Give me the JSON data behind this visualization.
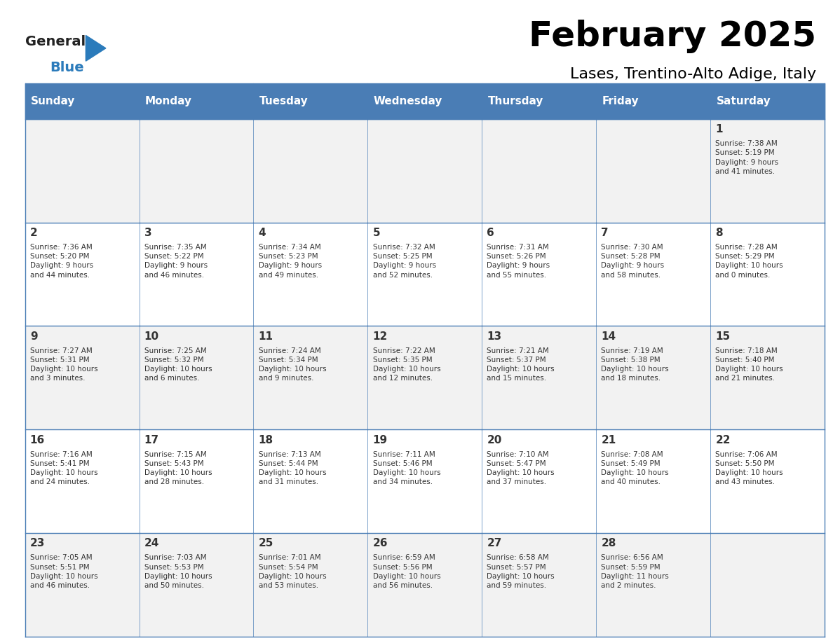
{
  "title": "February 2025",
  "subtitle": "Lases, Trentino-Alto Adige, Italy",
  "days_of_week": [
    "Sunday",
    "Monday",
    "Tuesday",
    "Wednesday",
    "Thursday",
    "Friday",
    "Saturday"
  ],
  "header_bg": "#4A7DB5",
  "header_text": "#FFFFFF",
  "cell_bg_even": "#F2F2F2",
  "cell_bg_odd": "#FFFFFF",
  "border_color": "#4A7DB5",
  "text_color": "#333333",
  "logo_general_color": "#222222",
  "logo_blue_color": "#2B7BBB",
  "weeks": [
    [
      {
        "day": null,
        "sunrise": null,
        "sunset": null,
        "daylight": null
      },
      {
        "day": null,
        "sunrise": null,
        "sunset": null,
        "daylight": null
      },
      {
        "day": null,
        "sunrise": null,
        "sunset": null,
        "daylight": null
      },
      {
        "day": null,
        "sunrise": null,
        "sunset": null,
        "daylight": null
      },
      {
        "day": null,
        "sunrise": null,
        "sunset": null,
        "daylight": null
      },
      {
        "day": null,
        "sunrise": null,
        "sunset": null,
        "daylight": null
      },
      {
        "day": 1,
        "sunrise": "7:38 AM",
        "sunset": "5:19 PM",
        "daylight": "9 hours\nand 41 minutes."
      }
    ],
    [
      {
        "day": 2,
        "sunrise": "7:36 AM",
        "sunset": "5:20 PM",
        "daylight": "9 hours\nand 44 minutes."
      },
      {
        "day": 3,
        "sunrise": "7:35 AM",
        "sunset": "5:22 PM",
        "daylight": "9 hours\nand 46 minutes."
      },
      {
        "day": 4,
        "sunrise": "7:34 AM",
        "sunset": "5:23 PM",
        "daylight": "9 hours\nand 49 minutes."
      },
      {
        "day": 5,
        "sunrise": "7:32 AM",
        "sunset": "5:25 PM",
        "daylight": "9 hours\nand 52 minutes."
      },
      {
        "day": 6,
        "sunrise": "7:31 AM",
        "sunset": "5:26 PM",
        "daylight": "9 hours\nand 55 minutes."
      },
      {
        "day": 7,
        "sunrise": "7:30 AM",
        "sunset": "5:28 PM",
        "daylight": "9 hours\nand 58 minutes."
      },
      {
        "day": 8,
        "sunrise": "7:28 AM",
        "sunset": "5:29 PM",
        "daylight": "10 hours\nand 0 minutes."
      }
    ],
    [
      {
        "day": 9,
        "sunrise": "7:27 AM",
        "sunset": "5:31 PM",
        "daylight": "10 hours\nand 3 minutes."
      },
      {
        "day": 10,
        "sunrise": "7:25 AM",
        "sunset": "5:32 PM",
        "daylight": "10 hours\nand 6 minutes."
      },
      {
        "day": 11,
        "sunrise": "7:24 AM",
        "sunset": "5:34 PM",
        "daylight": "10 hours\nand 9 minutes."
      },
      {
        "day": 12,
        "sunrise": "7:22 AM",
        "sunset": "5:35 PM",
        "daylight": "10 hours\nand 12 minutes."
      },
      {
        "day": 13,
        "sunrise": "7:21 AM",
        "sunset": "5:37 PM",
        "daylight": "10 hours\nand 15 minutes."
      },
      {
        "day": 14,
        "sunrise": "7:19 AM",
        "sunset": "5:38 PM",
        "daylight": "10 hours\nand 18 minutes."
      },
      {
        "day": 15,
        "sunrise": "7:18 AM",
        "sunset": "5:40 PM",
        "daylight": "10 hours\nand 21 minutes."
      }
    ],
    [
      {
        "day": 16,
        "sunrise": "7:16 AM",
        "sunset": "5:41 PM",
        "daylight": "10 hours\nand 24 minutes."
      },
      {
        "day": 17,
        "sunrise": "7:15 AM",
        "sunset": "5:43 PM",
        "daylight": "10 hours\nand 28 minutes."
      },
      {
        "day": 18,
        "sunrise": "7:13 AM",
        "sunset": "5:44 PM",
        "daylight": "10 hours\nand 31 minutes."
      },
      {
        "day": 19,
        "sunrise": "7:11 AM",
        "sunset": "5:46 PM",
        "daylight": "10 hours\nand 34 minutes."
      },
      {
        "day": 20,
        "sunrise": "7:10 AM",
        "sunset": "5:47 PM",
        "daylight": "10 hours\nand 37 minutes."
      },
      {
        "day": 21,
        "sunrise": "7:08 AM",
        "sunset": "5:49 PM",
        "daylight": "10 hours\nand 40 minutes."
      },
      {
        "day": 22,
        "sunrise": "7:06 AM",
        "sunset": "5:50 PM",
        "daylight": "10 hours\nand 43 minutes."
      }
    ],
    [
      {
        "day": 23,
        "sunrise": "7:05 AM",
        "sunset": "5:51 PM",
        "daylight": "10 hours\nand 46 minutes."
      },
      {
        "day": 24,
        "sunrise": "7:03 AM",
        "sunset": "5:53 PM",
        "daylight": "10 hours\nand 50 minutes."
      },
      {
        "day": 25,
        "sunrise": "7:01 AM",
        "sunset": "5:54 PM",
        "daylight": "10 hours\nand 53 minutes."
      },
      {
        "day": 26,
        "sunrise": "6:59 AM",
        "sunset": "5:56 PM",
        "daylight": "10 hours\nand 56 minutes."
      },
      {
        "day": 27,
        "sunrise": "6:58 AM",
        "sunset": "5:57 PM",
        "daylight": "10 hours\nand 59 minutes."
      },
      {
        "day": 28,
        "sunrise": "6:56 AM",
        "sunset": "5:59 PM",
        "daylight": "11 hours\nand 2 minutes."
      },
      {
        "day": null,
        "sunrise": null,
        "sunset": null,
        "daylight": null
      }
    ]
  ]
}
